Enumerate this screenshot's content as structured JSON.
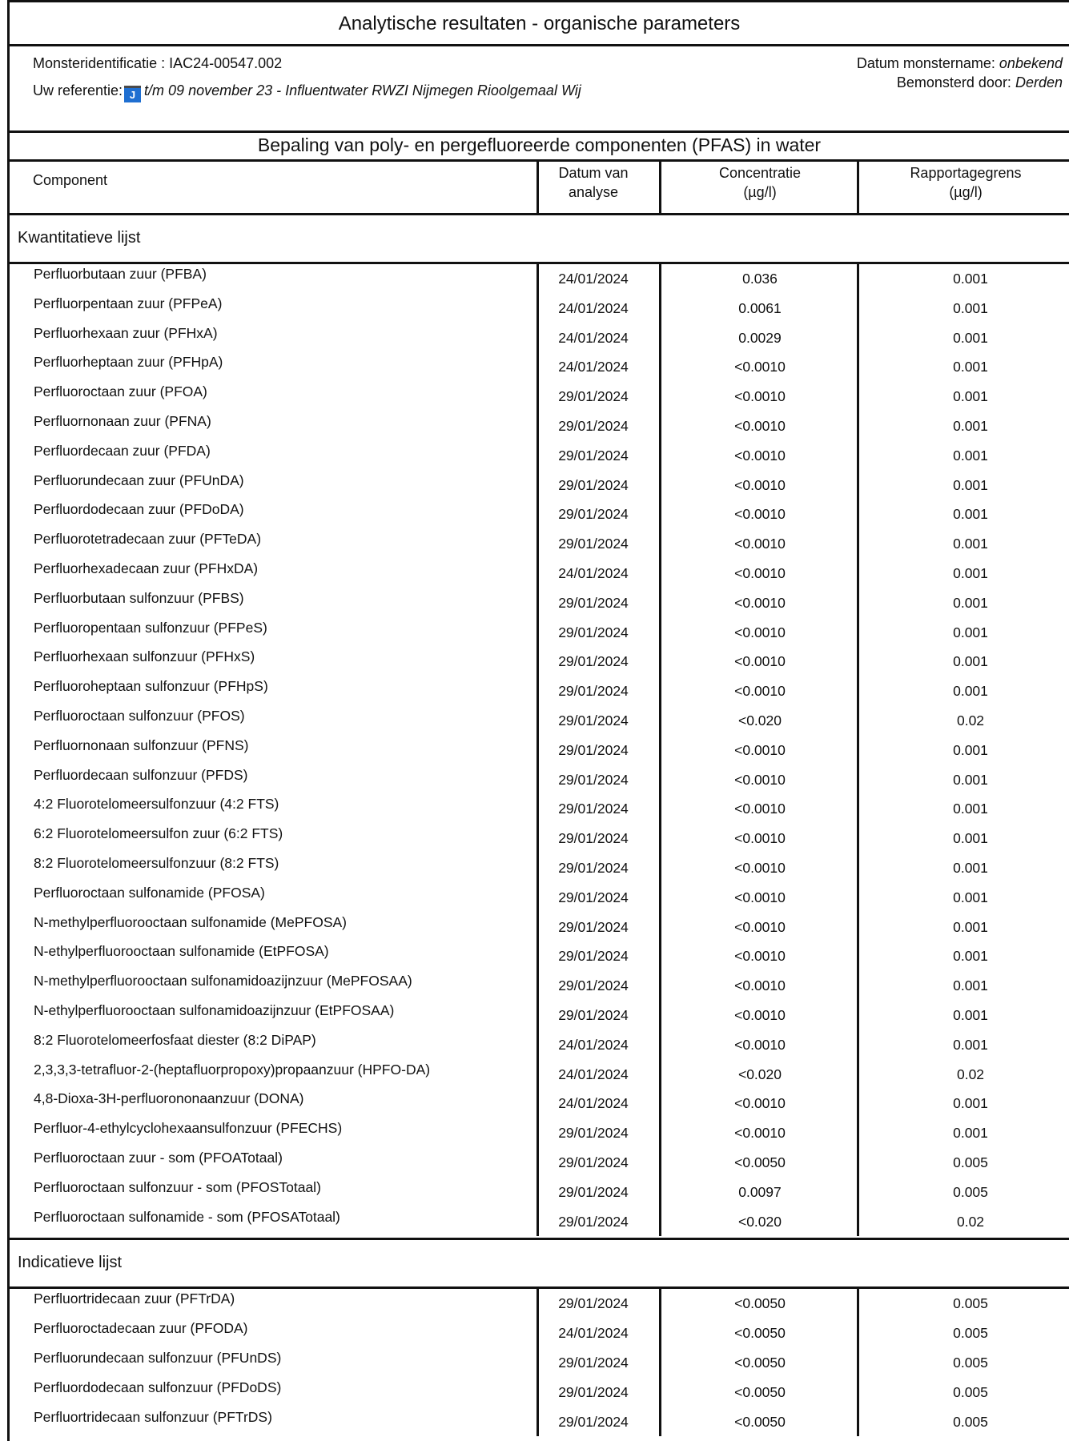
{
  "header": {
    "title": "Analytische resultaten - organische parameters",
    "sample_id_label": "Monsteridentificatie : IAC24-00547.002",
    "reference_label": "Uw referentie:",
    "reference_badge": "J",
    "reference_value": "t/m 09 november 23 - Influentwater RWZI Nijmegen Rioolgemaal Wij​",
    "sampling_date_label": "Datum monstername:",
    "sampling_date_value": "onbekend",
    "sampled_by_label": "Bemonsterd door:",
    "sampled_by_value": "Derden"
  },
  "section": {
    "title": "Bepaling van poly- en pergefluoreerde componenten (PFAS) in water",
    "columns": {
      "component": "Component",
      "date_line1": "Datum van",
      "date_line2": "analyse",
      "conc_line1": "Concentratie",
      "conc_line2": "(µg/l)",
      "limit_line1": "Rapportagegrens",
      "limit_line2": "(µg/l)"
    }
  },
  "groups": [
    {
      "title": "Kwantitatieve lijst",
      "rows": [
        [
          "Perfluorbutaan zuur (PFBA)",
          "24/01/2024",
          "0.036",
          "0.001"
        ],
        [
          "Perfluorpentaan zuur (PFPeA)",
          "24/01/2024",
          "0.0061",
          "0.001"
        ],
        [
          "Perfluorhexaan zuur (PFHxA)",
          "24/01/2024",
          "0.0029",
          "0.001"
        ],
        [
          "Perfluorheptaan zuur (PFHpA)",
          "24/01/2024",
          "<0.0010",
          "0.001"
        ],
        [
          "Perfluoroctaan zuur (PFOA)",
          "29/01/2024",
          "<0.0010",
          "0.001"
        ],
        [
          "Perfluornonaan zuur (PFNA)",
          "29/01/2024",
          "<0.0010",
          "0.001"
        ],
        [
          "Perfluordecaan zuur (PFDA)",
          "29/01/2024",
          "<0.0010",
          "0.001"
        ],
        [
          "Perfluorundecaan zuur (PFUnDA)",
          "29/01/2024",
          "<0.0010",
          "0.001"
        ],
        [
          "Perfluordodecaan zuur (PFDoDA)",
          "29/01/2024",
          "<0.0010",
          "0.001"
        ],
        [
          "Perfluorotetradecaan zuur (PFTeDA)",
          "29/01/2024",
          "<0.0010",
          "0.001"
        ],
        [
          "Perfluorhexadecaan zuur (PFHxDA)",
          "24/01/2024",
          "<0.0010",
          "0.001"
        ],
        [
          "Perfluorbutaan sulfonzuur (PFBS)",
          "29/01/2024",
          "<0.0010",
          "0.001"
        ],
        [
          "Perfluoropentaan sulfonzuur (PFPeS)",
          "29/01/2024",
          "<0.0010",
          "0.001"
        ],
        [
          "Perfluorhexaan sulfonzuur (PFHxS)",
          "29/01/2024",
          "<0.0010",
          "0.001"
        ],
        [
          "Perfluoroheptaan sulfonzuur (PFHpS)",
          "29/01/2024",
          "<0.0010",
          "0.001"
        ],
        [
          "Perfluoroctaan sulfonzuur (PFOS)",
          "29/01/2024",
          "<0.020",
          "0.02"
        ],
        [
          "Perfluornonaan sulfonzuur (PFNS)",
          "29/01/2024",
          "<0.0010",
          "0.001"
        ],
        [
          "Perfluordecaan sulfonzuur (PFDS)",
          "29/01/2024",
          "<0.0010",
          "0.001"
        ],
        [
          "4:2 Fluorotelomeersulfonzuur (4:2 FTS)",
          "29/01/2024",
          "<0.0010",
          "0.001"
        ],
        [
          "6:2 Fluorotelomeersulfon zuur (6:2 FTS)",
          "29/01/2024",
          "<0.0010",
          "0.001"
        ],
        [
          "8:2 Fluorotelomeersulfonzuur (8:2 FTS)",
          "29/01/2024",
          "<0.0010",
          "0.001"
        ],
        [
          "Perfluoroctaan sulfonamide (PFOSA)",
          "29/01/2024",
          "<0.0010",
          "0.001"
        ],
        [
          "N-methylperfluorooctaan sulfonamide (MePFOSA)",
          "29/01/2024",
          "<0.0010",
          "0.001"
        ],
        [
          "N-ethylperfluorooctaan sulfonamide (EtPFOSA)",
          "29/01/2024",
          "<0.0010",
          "0.001"
        ],
        [
          "N-methylperfluorooctaan sulfonamidoazijnzuur (MePFOSAA)",
          "29/01/2024",
          "<0.0010",
          "0.001"
        ],
        [
          "N-ethylperfluorooctaan sulfonamidoazijnzuur (EtPFOSAA)",
          "29/01/2024",
          "<0.0010",
          "0.001"
        ],
        [
          "8:2 Fluorotelomeerfosfaat diester (8:2 DiPAP)",
          "24/01/2024",
          "<0.0010",
          "0.001"
        ],
        [
          "2,3,3,3-tetrafluor-2-(heptafluorpropoxy)propaanzuur (HPFO-DA)",
          "24/01/2024",
          "<0.020",
          "0.02"
        ],
        [
          "4,8-Dioxa-3H-perfluorononaanzuur (DONA)",
          "24/01/2024",
          "<0.0010",
          "0.001"
        ],
        [
          "Perfluor-4-ethylcyclohexaansulfonzuur (PFECHS)",
          "29/01/2024",
          "<0.0010",
          "0.001"
        ],
        [
          "Perfluoroctaan zuur - som (PFOATotaal)",
          "29/01/2024",
          "<0.0050",
          "0.005"
        ],
        [
          "Perfluoroctaan sulfonzuur - som (PFOSTotaal)",
          "29/01/2024",
          "0.0097",
          "0.005"
        ],
        [
          "Perfluoroctaan sulfonamide - som (PFOSATotaal)",
          "29/01/2024",
          "<0.020",
          "0.02"
        ]
      ]
    },
    {
      "title": "Indicatieve lijst",
      "rows": [
        [
          "Perfluortridecaan zuur (PFTrDA)",
          "29/01/2024",
          "<0.0050",
          "0.005"
        ],
        [
          "Perfluoroctadecaan zuur (PFODA)",
          "24/01/2024",
          "<0.0050",
          "0.005"
        ],
        [
          "Perfluorundecaan sulfonzuur (PFUnDS)",
          "29/01/2024",
          "<0.0050",
          "0.005"
        ],
        [
          "Perfluordodecaan sulfonzuur (PFDoDS)",
          "29/01/2024",
          "<0.0050",
          "0.005"
        ],
        [
          "Perfluortridecaan sulfonzuur (PFTrDS)",
          "29/01/2024",
          "<0.0050",
          "0.005"
        ]
      ]
    }
  ]
}
